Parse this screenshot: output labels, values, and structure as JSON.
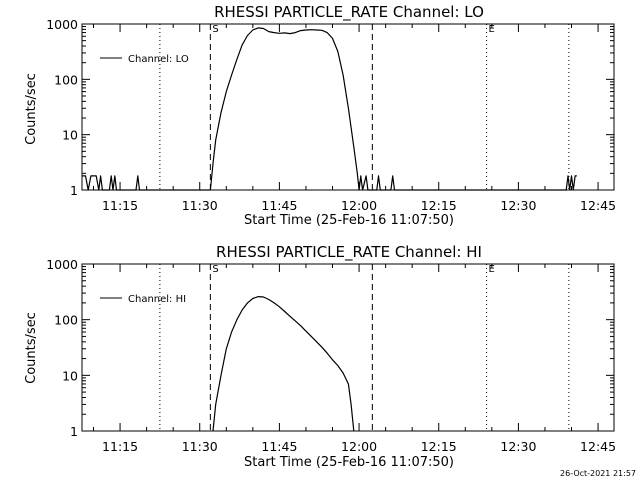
{
  "footer": {
    "timestamp": "26-Oct-2021 21:57"
  },
  "chart_data": [
    {
      "type": "line",
      "title": "RHESSI PARTICLE_RATE Channel: LO",
      "xlabel": "Start Time (25-Feb-16 11:07:50)",
      "ylabel": "Counts/sec",
      "yscale": "log",
      "ylim": [
        1,
        1000
      ],
      "yticks": [
        "1",
        "10",
        "100",
        "1000"
      ],
      "xlim": [
        "11:07:50",
        "12:48:00"
      ],
      "xticks": [
        "11:15",
        "11:30",
        "11:45",
        "12:00",
        "12:15",
        "12:30",
        "12:45"
      ],
      "legend": {
        "position": "top-left",
        "entries": [
          "Channel: LO"
        ]
      },
      "markers": [
        {
          "time": "11:22:30",
          "style": "dotted",
          "label": ""
        },
        {
          "time": "11:32:00",
          "style": "dashed",
          "label": "S"
        },
        {
          "time": "12:02:30",
          "style": "dashed",
          "label": ""
        },
        {
          "time": "12:24:00",
          "style": "dotted",
          "label": "E"
        },
        {
          "time": "12:39:30",
          "style": "dotted",
          "label": ""
        }
      ],
      "series": [
        {
          "name": "Channel: LO",
          "points": [
            [
              "11:07:50",
              1.8
            ],
            [
              "11:08:30",
              1.8
            ],
            [
              "11:09:00",
              1
            ],
            [
              "11:09:30",
              1.8
            ],
            [
              "11:10:30",
              1.8
            ],
            [
              "11:11:00",
              1
            ],
            [
              "11:11:20",
              1.8
            ],
            [
              "11:11:40",
              1
            ],
            [
              "11:13:00",
              1
            ],
            [
              "11:13:20",
              1.8
            ],
            [
              "11:13:40",
              1
            ],
            [
              "11:14:00",
              1.8
            ],
            [
              "11:14:20",
              1
            ],
            [
              "11:18:00",
              1
            ],
            [
              "11:18:20",
              1.8
            ],
            [
              "11:18:40",
              1
            ],
            [
              "11:32:00",
              1
            ],
            [
              "11:32:30",
              3
            ],
            [
              "11:33:00",
              8
            ],
            [
              "11:34:00",
              25
            ],
            [
              "11:35:00",
              60
            ],
            [
              "11:36:00",
              120
            ],
            [
              "11:37:00",
              230
            ],
            [
              "11:38:00",
              420
            ],
            [
              "11:39:00",
              620
            ],
            [
              "11:40:00",
              780
            ],
            [
              "11:41:00",
              850
            ],
            [
              "11:42:00",
              830
            ],
            [
              "11:43:00",
              730
            ],
            [
              "11:44:00",
              700
            ],
            [
              "11:45:00",
              680
            ],
            [
              "11:46:00",
              690
            ],
            [
              "11:47:00",
              670
            ],
            [
              "11:48:00",
              700
            ],
            [
              "11:49:00",
              760
            ],
            [
              "11:50:00",
              780
            ],
            [
              "11:51:00",
              790
            ],
            [
              "11:52:00",
              780
            ],
            [
              "11:53:00",
              770
            ],
            [
              "11:54:00",
              700
            ],
            [
              "11:55:00",
              550
            ],
            [
              "11:56:00",
              320
            ],
            [
              "11:57:00",
              120
            ],
            [
              "11:58:00",
              30
            ],
            [
              "11:59:00",
              6
            ],
            [
              "11:59:40",
              2
            ],
            [
              "12:00:00",
              1
            ],
            [
              "12:00:20",
              1.8
            ],
            [
              "12:00:40",
              1
            ],
            [
              "12:01:20",
              1.8
            ],
            [
              "12:01:40",
              1
            ],
            [
              "12:03:20",
              1
            ],
            [
              "12:03:40",
              1.8
            ],
            [
              "12:04:00",
              1
            ],
            [
              "12:06:00",
              1
            ],
            [
              "12:06:20",
              1.8
            ],
            [
              "12:06:40",
              1
            ],
            [
              "12:39:00",
              1
            ],
            [
              "12:39:20",
              1.8
            ],
            [
              "12:39:40",
              1
            ],
            [
              "12:40:00",
              1.8
            ],
            [
              "12:40:20",
              1
            ],
            [
              "12:40:40",
              1.8
            ],
            [
              "12:41:00",
              1.8
            ]
          ]
        }
      ]
    },
    {
      "type": "line",
      "title": "RHESSI PARTICLE_RATE Channel: HI",
      "xlabel": "Start Time (25-Feb-16 11:07:50)",
      "ylabel": "Counts/sec",
      "yscale": "log",
      "ylim": [
        1,
        1000
      ],
      "yticks": [
        "1",
        "10",
        "100",
        "1000"
      ],
      "xlim": [
        "11:07:50",
        "12:48:00"
      ],
      "xticks": [
        "11:15",
        "11:30",
        "11:45",
        "12:00",
        "12:15",
        "12:30",
        "12:45"
      ],
      "legend": {
        "position": "top-left",
        "entries": [
          "Channel: HI"
        ]
      },
      "markers": [
        {
          "time": "11:22:30",
          "style": "dotted",
          "label": ""
        },
        {
          "time": "11:32:00",
          "style": "dashed",
          "label": "S"
        },
        {
          "time": "12:02:30",
          "style": "dashed",
          "label": ""
        },
        {
          "time": "12:24:00",
          "style": "dotted",
          "label": "E"
        },
        {
          "time": "12:39:30",
          "style": "dotted",
          "label": ""
        }
      ],
      "series": [
        {
          "name": "Channel: HI",
          "points": [
            [
              "11:32:30",
              1
            ],
            [
              "11:33:00",
              3
            ],
            [
              "11:34:00",
              10
            ],
            [
              "11:35:00",
              30
            ],
            [
              "11:36:00",
              60
            ],
            [
              "11:37:00",
              100
            ],
            [
              "11:38:00",
              150
            ],
            [
              "11:39:00",
              200
            ],
            [
              "11:40:00",
              240
            ],
            [
              "11:41:00",
              260
            ],
            [
              "11:42:00",
              255
            ],
            [
              "11:43:00",
              230
            ],
            [
              "11:44:00",
              200
            ],
            [
              "11:45:00",
              170
            ],
            [
              "11:46:00",
              140
            ],
            [
              "11:47:00",
              115
            ],
            [
              "11:48:00",
              95
            ],
            [
              "11:49:00",
              78
            ],
            [
              "11:50:00",
              62
            ],
            [
              "11:51:00",
              50
            ],
            [
              "11:52:00",
              40
            ],
            [
              "11:53:00",
              32
            ],
            [
              "11:54:00",
              25
            ],
            [
              "11:55:00",
              19
            ],
            [
              "11:56:00",
              15
            ],
            [
              "11:57:00",
              11
            ],
            [
              "11:58:00",
              7
            ],
            [
              "11:58:30",
              3
            ],
            [
              "11:59:00",
              1
            ]
          ]
        }
      ]
    }
  ]
}
